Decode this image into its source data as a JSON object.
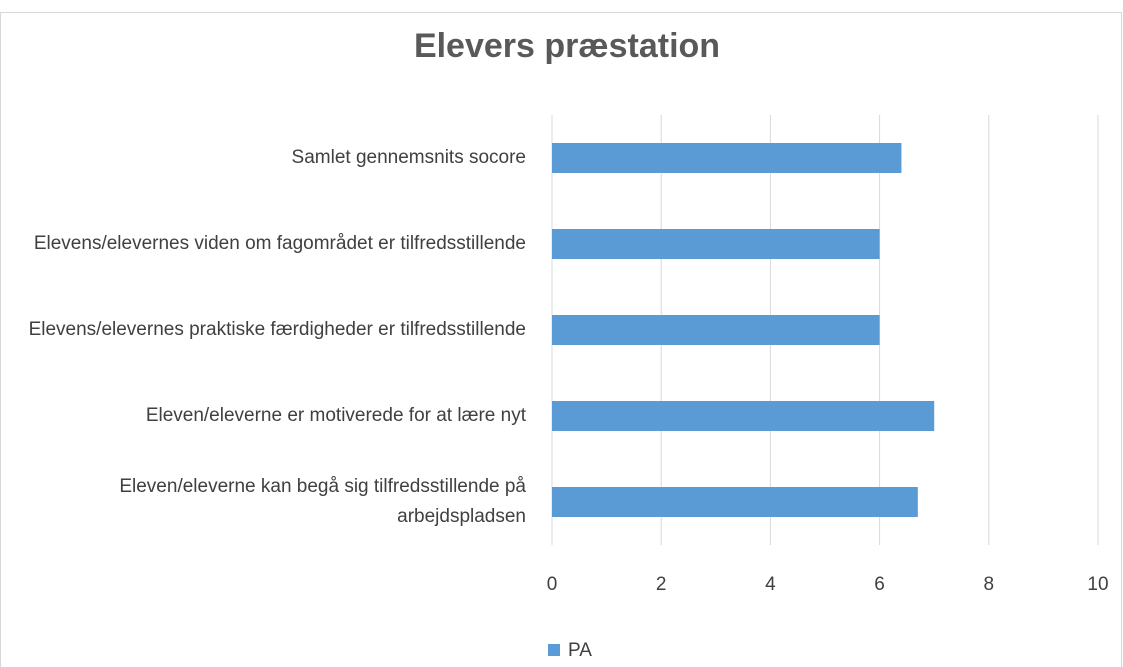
{
  "chart_data": {
    "type": "bar",
    "orientation": "horizontal",
    "title": "Elevers præstation",
    "categories": [
      "Samlet gennemsnits socore",
      "Elevens/elevernes viden om fagområdet er tilfredsstillende",
      "Elevens/elevernes praktiske færdigheder er tilfredsstillende",
      "Eleven/eleverne er motiverede for at lære nyt",
      "Eleven/eleverne kan begå sig tilfredsstillende på arbejdspladsen"
    ],
    "series": [
      {
        "name": "PA",
        "color": "#5b9bd5",
        "values": [
          6.4,
          6.0,
          6.0,
          7.0,
          6.7
        ]
      }
    ],
    "xlim": [
      0,
      10
    ],
    "xticks": [
      0,
      2,
      4,
      6,
      8,
      10
    ],
    "grid": true,
    "legend": "bottom"
  }
}
